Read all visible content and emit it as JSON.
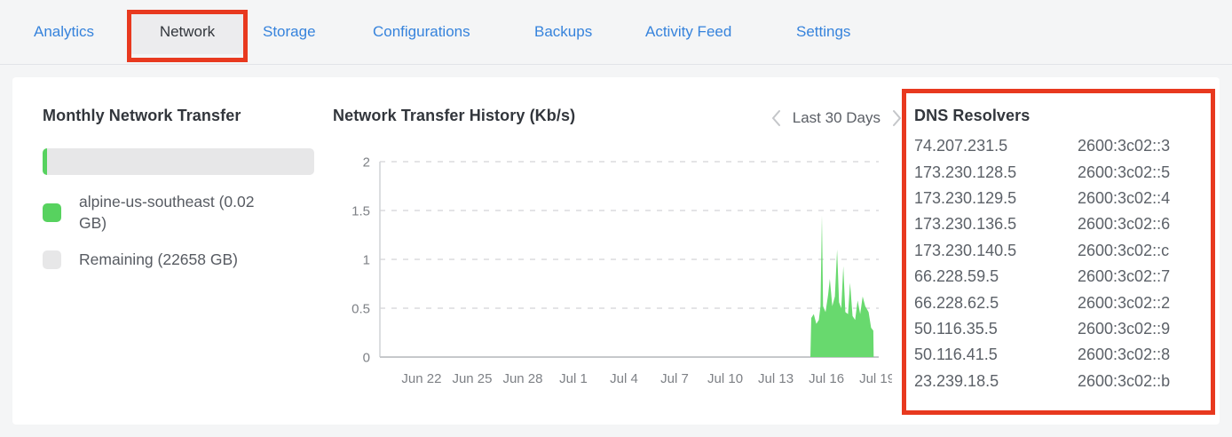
{
  "page": {
    "background": "#f4f5f6",
    "card_background": "#ffffff"
  },
  "colors": {
    "accent_blue": "#3683dc",
    "green": "#57d25f",
    "area_green": "#68d96e",
    "track_gray": "#e7e7e8",
    "annotation_red": "#e8391f",
    "selected_tab_bg": "#ececee",
    "title_text": "#32363c"
  },
  "tabs": {
    "items": [
      {
        "label": "Analytics",
        "selected": false
      },
      {
        "label": "Network",
        "selected": true
      },
      {
        "label": "Storage",
        "selected": false
      },
      {
        "label": "Configurations",
        "selected": false
      },
      {
        "label": "Backups",
        "selected": false
      },
      {
        "label": "Activity Feed",
        "selected": false
      },
      {
        "label": "Settings",
        "selected": false
      }
    ]
  },
  "monthly_transfer": {
    "title": "Monthly Network Transfer",
    "used_gb": 0.02,
    "remaining_gb": 22658,
    "legend": [
      {
        "label": "alpine-us-southeast (0.02 GB)",
        "color_key": "green"
      },
      {
        "label": "Remaining (22658 GB)",
        "color_key": "track_gray"
      }
    ]
  },
  "chart": {
    "title": "Network Transfer History (Kb/s)",
    "range_label": "Last 30 Days",
    "prev_icon": "chevron-left",
    "next_icon": "chevron-right"
  },
  "chart_data": {
    "type": "area",
    "title": "Network Transfer History (Kb/s)",
    "ylabel": "Kb/s",
    "ylim": [
      0,
      2
    ],
    "yticks": [
      {
        "value": 0,
        "label": "0"
      },
      {
        "value": 0.5,
        "label": "0.5"
      },
      {
        "value": 1,
        "label": "1"
      },
      {
        "value": 1.5,
        "label": "1.5"
      },
      {
        "value": 2,
        "label": "2"
      }
    ],
    "xticks": [
      "Jun 22",
      "Jun 25",
      "Jun 28",
      "Jul 1",
      "Jul 4",
      "Jul 7",
      "Jul 10",
      "Jul 13",
      "Jul 16",
      "Jul 19"
    ],
    "x_tick_spacing_days": 3,
    "x_domain_days_since_jun22": [
      -2.47,
      27.1
    ],
    "grid": "dashed-horizontal",
    "legend_position": "none",
    "series": [
      {
        "name": "alpine-us-southeast",
        "color": "#68d96e",
        "points_days_since_jun22": [
          [
            23.05,
            0
          ],
          [
            23.1,
            0.4
          ],
          [
            23.25,
            0.44
          ],
          [
            23.4,
            0.34
          ],
          [
            23.55,
            0.38
          ],
          [
            23.65,
            0.52
          ],
          [
            23.73,
            1.45
          ],
          [
            23.8,
            0.52
          ],
          [
            23.95,
            0.46
          ],
          [
            24.1,
            0.64
          ],
          [
            24.2,
            0.8
          ],
          [
            24.35,
            0.52
          ],
          [
            24.5,
            0.62
          ],
          [
            24.63,
            1.1
          ],
          [
            24.75,
            0.56
          ],
          [
            24.88,
            0.5
          ],
          [
            25.0,
            0.93
          ],
          [
            25.12,
            0.46
          ],
          [
            25.28,
            0.44
          ],
          [
            25.4,
            0.76
          ],
          [
            25.55,
            0.42
          ],
          [
            25.7,
            0.38
          ],
          [
            25.85,
            0.58
          ],
          [
            26.0,
            0.44
          ],
          [
            26.15,
            0.62
          ],
          [
            26.3,
            0.52
          ],
          [
            26.5,
            0.46
          ],
          [
            26.65,
            0.3
          ],
          [
            26.78,
            0.27
          ],
          [
            26.8,
            0
          ]
        ]
      }
    ]
  },
  "dns_resolvers": {
    "title": "DNS Resolvers",
    "entries": [
      {
        "ipv4": "74.207.231.5",
        "ipv6": "2600:3c02::3"
      },
      {
        "ipv4": "173.230.128.5",
        "ipv6": "2600:3c02::5"
      },
      {
        "ipv4": "173.230.129.5",
        "ipv6": "2600:3c02::4"
      },
      {
        "ipv4": "173.230.136.5",
        "ipv6": "2600:3c02::6"
      },
      {
        "ipv4": "173.230.140.5",
        "ipv6": "2600:3c02::c"
      },
      {
        "ipv4": "66.228.59.5",
        "ipv6": "2600:3c02::7"
      },
      {
        "ipv4": "66.228.62.5",
        "ipv6": "2600:3c02::2"
      },
      {
        "ipv4": "50.116.35.5",
        "ipv6": "2600:3c02::9"
      },
      {
        "ipv4": "50.116.41.5",
        "ipv6": "2600:3c02::8"
      },
      {
        "ipv4": "23.239.18.5",
        "ipv6": "2600:3c02::b"
      }
    ]
  },
  "annotations": {
    "color": "#e8391f",
    "targets": [
      "network-tab",
      "dns-resolvers-panel"
    ]
  }
}
